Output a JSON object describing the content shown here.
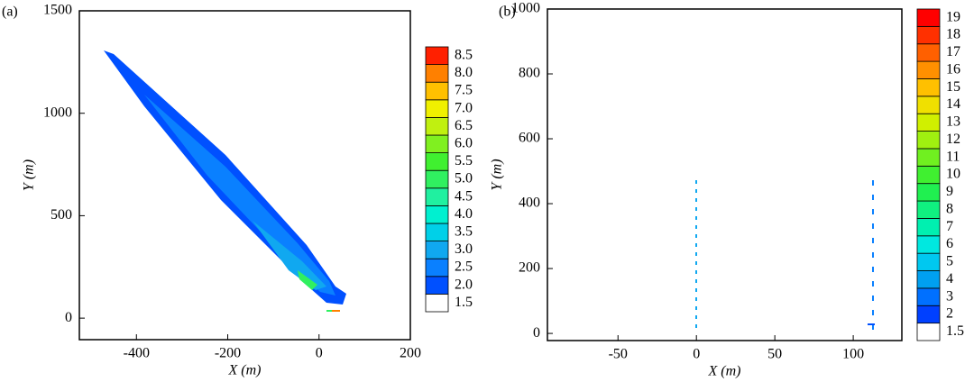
{
  "chart_data": [
    {
      "type": "contour",
      "panel_label": "(a)",
      "xlabel": "X (m)",
      "ylabel": "Y (m)",
      "xlim": [
        -525,
        200
      ],
      "ylim": [
        -105,
        1500
      ],
      "xticks": [
        -400,
        -200,
        0,
        200
      ],
      "yticks": [
        0,
        500,
        1000,
        1500
      ],
      "levels": [
        1.5,
        {
          "value": 2,
          "label": "2.0"
        },
        2.5,
        {
          "value": 3,
          "label": "3.0"
        },
        3.5,
        {
          "value": 4,
          "label": "4.0"
        },
        4.5,
        {
          "value": 5,
          "label": "5.0"
        },
        5.5,
        {
          "value": 6,
          "label": "6.0"
        },
        6.5,
        {
          "value": 7,
          "label": "7.0"
        },
        7.5,
        {
          "value": 8,
          "label": "8.0"
        },
        8.5
      ],
      "level_colors": [
        "#ffffff",
        "#0050ff",
        "#0a80ff",
        "#10a8f0",
        "#00d0e8",
        "#00f0d0",
        "#20f0a0",
        "#30f060",
        "#40f030",
        "#80f020",
        "#c0f010",
        "#f0f000",
        "#ffc000",
        "#ff8000",
        "#ff2000"
      ]
    },
    {
      "type": "contour",
      "panel_label": "(b)",
      "xlabel": "X (m)",
      "ylabel": "Y (m)",
      "xlim": [
        -95,
        131
      ],
      "ylim": [
        -22,
        1000
      ],
      "xticks": [
        -50,
        0,
        50,
        100
      ],
      "yticks": [
        0,
        200,
        400,
        600,
        800,
        1000
      ],
      "levels": [
        1.5,
        2,
        3,
        4,
        5,
        6,
        7,
        8,
        9,
        10,
        11,
        12,
        13,
        14,
        15,
        16,
        17,
        18,
        19
      ],
      "level_colors": [
        "#ffffff",
        "#0040ff",
        "#0070ff",
        "#00a0f0",
        "#00c8f0",
        "#00e8e0",
        "#00f0b0",
        "#10f080",
        "#20f050",
        "#40f030",
        "#70f020",
        "#a0f010",
        "#d0f000",
        "#f0e000",
        "#ffc000",
        "#ff9000",
        "#ff6000",
        "#ff3000",
        "#ff0000"
      ]
    }
  ]
}
